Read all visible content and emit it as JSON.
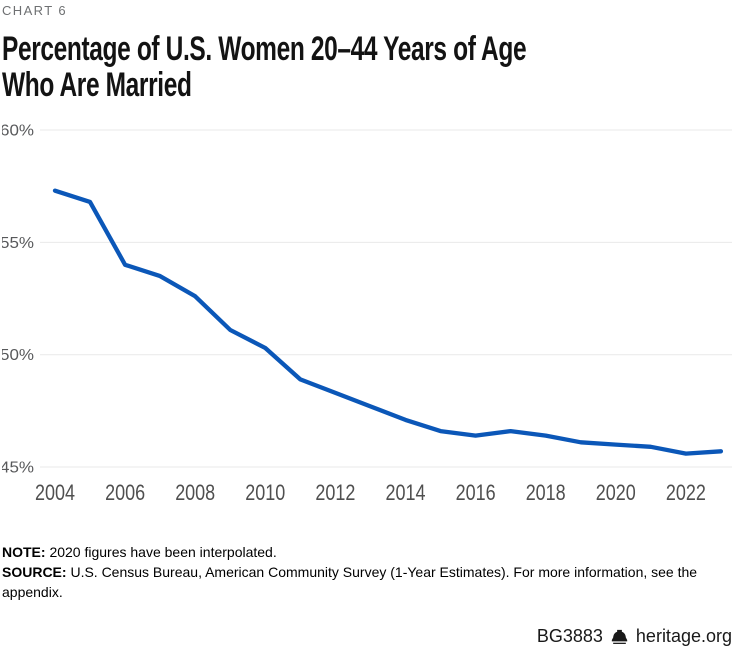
{
  "header": {
    "chart_label": "CHART 6",
    "title_line1": "Percentage of U.S. Women 20–44 Years of Age",
    "title_line2": "Who Are Married"
  },
  "chart_data": {
    "type": "line",
    "title": "Percentage of U.S. Women 20–44 Years of Age Who Are Married",
    "x": [
      2004,
      2005,
      2006,
      2007,
      2008,
      2009,
      2010,
      2011,
      2012,
      2013,
      2014,
      2015,
      2016,
      2017,
      2018,
      2019,
      2020,
      2021,
      2022,
      2023
    ],
    "series": [
      {
        "name": "Percent of U.S. women 20–44 who are married",
        "values": [
          57.3,
          56.8,
          54.0,
          53.5,
          52.6,
          51.1,
          50.3,
          48.9,
          48.3,
          47.7,
          47.1,
          46.6,
          46.4,
          46.6,
          46.4,
          46.1,
          46.0,
          45.9,
          45.6,
          45.7
        ]
      }
    ],
    "ylim": [
      45,
      60
    ],
    "yticks": [
      {
        "value": 60,
        "label": "60%"
      },
      {
        "value": 55,
        "label": "55%"
      },
      {
        "value": 50,
        "label": "50%"
      },
      {
        "value": 45,
        "label": "45%"
      }
    ],
    "xticks": [
      2004,
      2006,
      2008,
      2010,
      2012,
      2014,
      2016,
      2018,
      2020,
      2022
    ],
    "grid": "horizontal-only",
    "legend": "none",
    "line_color": "#0b57b8",
    "grid_color": "#e9e9e9",
    "ytick_color": "#58595b",
    "xtick_color": "#4f4f4f"
  },
  "notes": {
    "note_label": "NOTE:",
    "note_text": "2020 figures have been interpolated.",
    "source_label": "SOURCE:",
    "source_text": "U.S. Census Bureau, American Community Survey (1-Year Estimates). For more information, see the appendix."
  },
  "footer": {
    "doc_id": "BG3883",
    "site": "heritage.org"
  }
}
